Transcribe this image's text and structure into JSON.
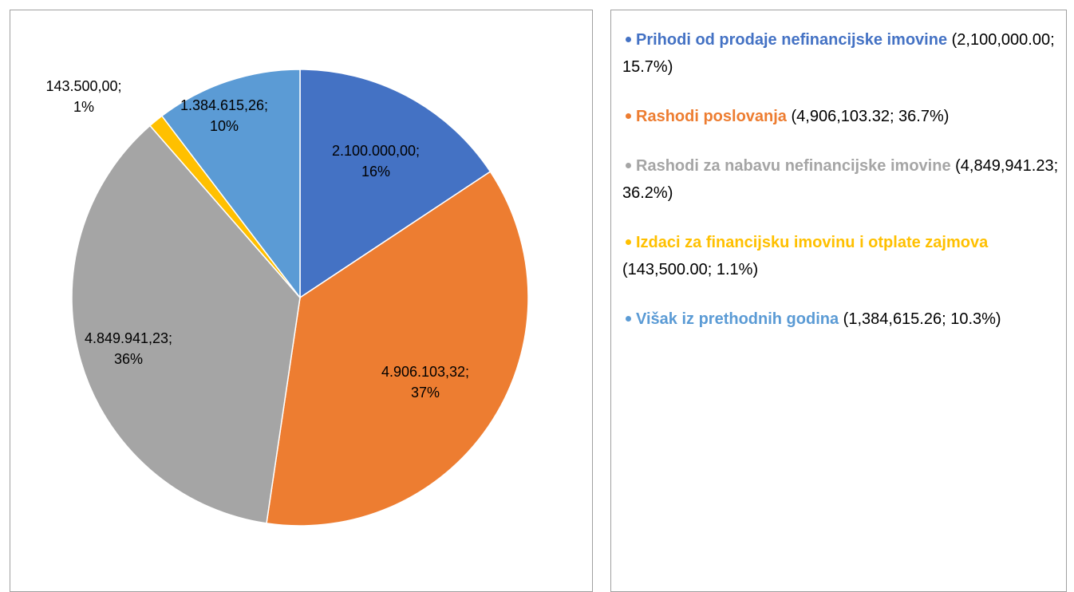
{
  "chart_data": {
    "type": "pie",
    "categories": [
      "Prihodi od prodaje nefinancijske imovine",
      "Rashodi poslovanja",
      "Rashodi za nabavu nefinancijske imovine",
      "Izdaci za financijsku imovinu i otplate zajmova",
      "Višak iz prethodnih godina"
    ],
    "values": [
      2100000.0,
      4906103.32,
      4849941.23,
      143500.0,
      1384615.26
    ],
    "value_labels": [
      "2.100.000,00; 16%",
      "4.906.103,32; 37%",
      "4.849.941,23; 36%",
      "143.500,00; 1%",
      "1.384.615,26; 10%"
    ],
    "legend_details": [
      "(2,100,000.00; 15.7%)",
      "(4,906,103.32; 36.7%)",
      "(4,849,941.23; 36.2%)",
      "(143,500.00; 1.1%)",
      "(1,384,615.26; 10.3%)"
    ],
    "colors": [
      "#4472c4",
      "#ed7d31",
      "#a5a5a5",
      "#ffc000",
      "#5b9bd5"
    ]
  }
}
